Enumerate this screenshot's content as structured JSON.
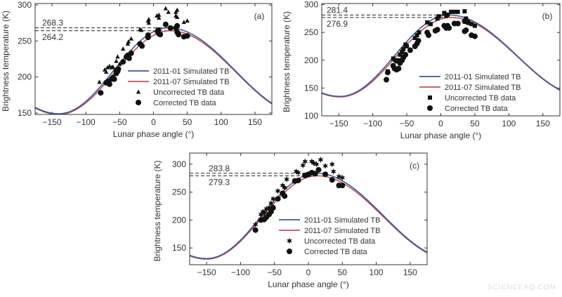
{
  "chart_data": [
    {
      "type": "line+scatter",
      "panel_label": "(a)",
      "xlabel": "Lunar phase angle (°)",
      "ylabel": "Brightness temperature (K)",
      "xlim": [
        -175,
        175
      ],
      "ylim": [
        148,
        302
      ],
      "xticks": [
        -150,
        -100,
        -50,
        0,
        50,
        100,
        150
      ],
      "yticks": [
        150,
        200,
        250,
        300
      ],
      "legend_position": "center",
      "annotations": [
        "268.3",
        "264.2"
      ],
      "series": [
        {
          "name": "2011-01 Simulated TB",
          "kind": "line",
          "color": "#3a5a9a",
          "peak": [
            22,
            268.3
          ],
          "trough": [
            -140,
            149
          ]
        },
        {
          "name": "2011-07 Simulated TB",
          "kind": "line",
          "color": "#c0505a",
          "peak": [
            25,
            264.2
          ],
          "trough": [
            -140,
            148
          ]
        },
        {
          "name": "Uncorrected TB data",
          "kind": "scatter",
          "marker": "triangle",
          "points": [
            [
              -80,
              193
            ],
            [
              -72,
              210
            ],
            [
              -70,
              207
            ],
            [
              -68,
              213
            ],
            [
              -65,
              215
            ],
            [
              -62,
              213
            ],
            [
              -60,
              214
            ],
            [
              -57,
              210
            ],
            [
              -55,
              222
            ],
            [
              -53,
              228
            ],
            [
              -50,
              218
            ],
            [
              -45,
              239
            ],
            [
              -38,
              246
            ],
            [
              -37,
              249
            ],
            [
              -33,
              253
            ],
            [
              -20,
              266
            ],
            [
              -18,
              265
            ],
            [
              -8,
              278
            ],
            [
              -7,
              275
            ],
            [
              -7,
              280
            ],
            [
              5,
              285
            ],
            [
              8,
              282
            ],
            [
              8,
              286
            ],
            [
              18,
              295
            ],
            [
              22,
              290
            ],
            [
              33,
              290
            ],
            [
              33,
              285
            ],
            [
              35,
              283
            ],
            [
              35,
              293
            ],
            [
              45,
              276
            ],
            [
              50,
              278
            ]
          ]
        },
        {
          "name": "Corrected TB data",
          "kind": "scatter",
          "marker": "circle",
          "points": [
            [
              -78,
              178
            ],
            [
              -70,
              192
            ],
            [
              -67,
              194
            ],
            [
              -65,
              190
            ],
            [
              -62,
              197
            ],
            [
              -60,
              199
            ],
            [
              -58,
              197
            ],
            [
              -55,
              205
            ],
            [
              -53,
              208
            ],
            [
              -52,
              211
            ],
            [
              -45,
              221
            ],
            [
              -40,
              228
            ],
            [
              -38,
              230
            ],
            [
              -36,
              226
            ],
            [
              -33,
              233
            ],
            [
              -20,
              246
            ],
            [
              -17,
              243
            ],
            [
              -8,
              255
            ],
            [
              -8,
              258
            ],
            [
              6,
              263
            ],
            [
              7,
              265
            ],
            [
              8,
              260
            ],
            [
              10,
              259
            ],
            [
              18,
              273
            ],
            [
              25,
              268
            ],
            [
              33,
              268
            ],
            [
              35,
              271
            ],
            [
              35,
              262
            ],
            [
              37,
              259
            ],
            [
              45,
              256
            ],
            [
              50,
              257
            ]
          ]
        }
      ]
    },
    {
      "type": "line+scatter",
      "panel_label": "(b)",
      "xlabel": "Lunar phase angle (°)",
      "ylabel": "Brightness temperature (K)",
      "xlim": [
        -175,
        175
      ],
      "ylim": [
        100,
        302
      ],
      "xticks": [
        -150,
        -100,
        -50,
        0,
        50,
        100,
        150
      ],
      "yticks": [
        100,
        150,
        200,
        250,
        300
      ],
      "legend_position": "bottom-right",
      "annotations": [
        "281.4",
        "276.9"
      ],
      "series": [
        {
          "name": "2011-01 Simulated TB",
          "kind": "line",
          "color": "#3a5a9a",
          "peak": [
            12,
            281.4
          ],
          "trough": [
            -148,
            135
          ]
        },
        {
          "name": "2011-07 Simulated TB",
          "kind": "line",
          "color": "#c0505a",
          "peak": [
            15,
            276.9
          ],
          "trough": [
            -148,
            134
          ]
        },
        {
          "name": "Uncorrected TB data",
          "kind": "scatter",
          "marker": "square",
          "points": [
            [
              -78,
              180
            ],
            [
              -70,
              203
            ],
            [
              -67,
              200
            ],
            [
              -65,
              198
            ],
            [
              -62,
              200
            ],
            [
              -60,
              210
            ],
            [
              -57,
              215
            ],
            [
              -55,
              220
            ],
            [
              -52,
              228
            ],
            [
              -50,
              225
            ],
            [
              -38,
              240
            ],
            [
              -35,
              245
            ],
            [
              -32,
              250
            ],
            [
              -20,
              268
            ],
            [
              -15,
              265
            ],
            [
              -5,
              275
            ],
            [
              -3,
              279
            ],
            [
              5,
              285
            ],
            [
              8,
              280
            ],
            [
              10,
              282
            ],
            [
              15,
              287
            ],
            [
              20,
              287
            ],
            [
              25,
              287
            ],
            [
              35,
              288
            ],
            [
              37,
              275
            ],
            [
              45,
              265
            ],
            [
              50,
              262
            ]
          ]
        },
        {
          "name": "Corrected TB data",
          "kind": "scatter",
          "marker": "circle",
          "points": [
            [
              -80,
              165
            ],
            [
              -78,
              178
            ],
            [
              -70,
              190
            ],
            [
              -68,
              185
            ],
            [
              -65,
              183
            ],
            [
              -62,
              185
            ],
            [
              -60,
              195
            ],
            [
              -57,
              200
            ],
            [
              -55,
              205
            ],
            [
              -52,
              210
            ],
            [
              -45,
              218
            ],
            [
              -38,
              225
            ],
            [
              -35,
              230
            ],
            [
              -33,
              235
            ],
            [
              -20,
              250
            ],
            [
              -18,
              245
            ],
            [
              -8,
              253
            ],
            [
              -5,
              255
            ],
            [
              5,
              262
            ],
            [
              8,
              258
            ],
            [
              10,
              262
            ],
            [
              12,
              258
            ],
            [
              20,
              266
            ],
            [
              25,
              266
            ],
            [
              35,
              252
            ],
            [
              37,
              254
            ],
            [
              45,
              245
            ],
            [
              50,
              243
            ],
            [
              35,
              270
            ],
            [
              40,
              268
            ]
          ]
        }
      ]
    },
    {
      "type": "line+scatter",
      "panel_label": "(c)",
      "xlabel": "Lunar phase angle (°)",
      "ylabel": "Brightness temperature (K)",
      "xlim": [
        -175,
        175
      ],
      "ylim": [
        120,
        320
      ],
      "xticks": [
        -150,
        -100,
        -50,
        0,
        50,
        100,
        150
      ],
      "yticks": [
        150,
        200,
        250,
        300
      ],
      "legend_position": "center",
      "annotations": [
        "283.8",
        "279.3"
      ],
      "series": [
        {
          "name": "2011-01 Simulated TB",
          "kind": "line",
          "color": "#3a5a9a",
          "peak": [
            12,
            283.8
          ],
          "trough": [
            -150,
            131
          ]
        },
        {
          "name": "2011-07 Simulated TB",
          "kind": "line",
          "color": "#c0505a",
          "peak": [
            13,
            279.3
          ],
          "trough": [
            -150,
            130
          ]
        },
        {
          "name": "Uncorrected TB data",
          "kind": "scatter",
          "marker": "star",
          "points": [
            [
              -78,
              192
            ],
            [
              -70,
              210
            ],
            [
              -67,
              215
            ],
            [
              -65,
              213
            ],
            [
              -62,
              220
            ],
            [
              -58,
              222
            ],
            [
              -55,
              230
            ],
            [
              -52,
              238
            ],
            [
              -45,
              252
            ],
            [
              -38,
              262
            ],
            [
              -35,
              258
            ],
            [
              -32,
              273
            ],
            [
              -18,
              287
            ],
            [
              -15,
              285
            ],
            [
              -8,
              298
            ],
            [
              -5,
              305
            ],
            [
              5,
              305
            ],
            [
              8,
              302
            ],
            [
              12,
              300
            ],
            [
              18,
              308
            ],
            [
              25,
              297
            ],
            [
              35,
              300
            ],
            [
              37,
              287
            ],
            [
              45,
              278
            ],
            [
              50,
              276
            ]
          ]
        },
        {
          "name": "Corrected TB data",
          "kind": "scatter",
          "marker": "circle",
          "points": [
            [
              -78,
              182
            ],
            [
              -70,
              200
            ],
            [
              -65,
              201
            ],
            [
              -62,
              205
            ],
            [
              -58,
              210
            ],
            [
              -55,
              215
            ],
            [
              -52,
              222
            ],
            [
              -45,
              238
            ],
            [
              -38,
              248
            ],
            [
              -35,
              243
            ],
            [
              -20,
              270
            ],
            [
              -15,
              271
            ],
            [
              -5,
              280
            ],
            [
              0,
              282
            ],
            [
              5,
              285
            ],
            [
              10,
              283
            ],
            [
              15,
              290
            ],
            [
              25,
              282
            ],
            [
              35,
              272
            ],
            [
              45,
              262
            ],
            [
              50,
              262
            ]
          ]
        }
      ]
    }
  ],
  "watermark": "SCIENCEAQ.COM"
}
